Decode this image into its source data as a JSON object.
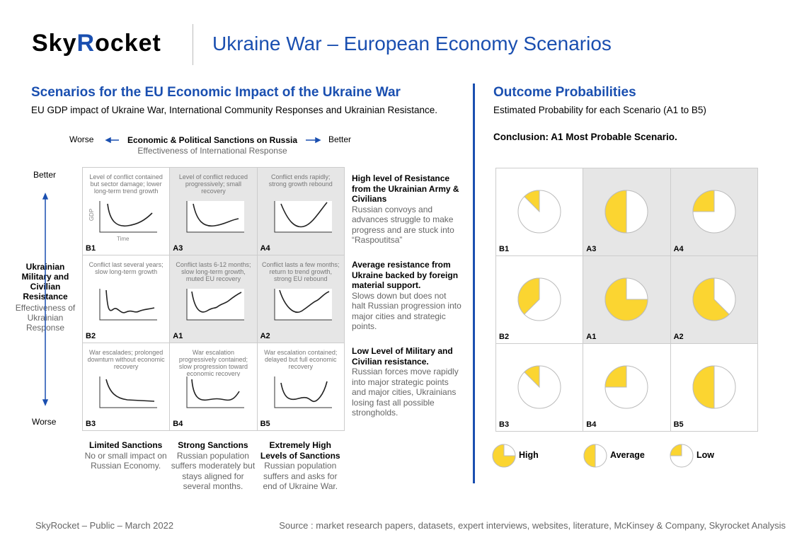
{
  "header": {
    "logo": [
      "Sky",
      "R",
      "ocket"
    ],
    "title": "Ukraine War – European Economy Scenarios"
  },
  "scenarios": {
    "title": "Scenarios for the EU Economic Impact of the Ukraine War",
    "subtitle": "EU GDP impact of Ukraine War, International Community Responses and Ukrainian Resistance.",
    "x_axis": {
      "worse": "Worse",
      "label": "Economic & Political Sanctions on Russia",
      "sublabel": "Effectiveness of International Response",
      "better": "Better"
    },
    "y_axis": {
      "better": "Better",
      "label": "Ukrainian Military and Civilian Resistance",
      "sublabel": "Effectiveness of Ukrainian Response",
      "worse": "Worse"
    },
    "chart_labels": {
      "y": "GDP",
      "x": "Time"
    },
    "cells": [
      {
        "id": "B1",
        "text": "Level of conflict contained but sector damage; lower long-term trend growth"
      },
      {
        "id": "A3",
        "text": "Level of conflict reduced progressively; small recovery"
      },
      {
        "id": "A4",
        "text": "Conflict ends rapidly; strong growth rebound"
      },
      {
        "id": "B2",
        "text": "Conflict last several years; slow long-term growth"
      },
      {
        "id": "A1",
        "text": "Conflict lasts 6-12 months; slow long-term growth, muted EU recovery"
      },
      {
        "id": "A2",
        "text": "Conflict lasts a few months; return to trend growth, strong EU rebound"
      },
      {
        "id": "B3",
        "text": "War escalades; prolonged downturn without economic recovery"
      },
      {
        "id": "B4",
        "text": "War escalation progressively contained; slow progression toward economic recovery"
      },
      {
        "id": "B5",
        "text": "War escalation contained; delayed but full economic recovery"
      }
    ],
    "rows": [
      {
        "title": "High level of Resistance from the Ukrainian Army & Civilians",
        "text": "Russian convoys and advances struggle to make progress and are stuck into “Raspoutitsa”"
      },
      {
        "title": "Average resistance from Ukraine backed by foreign material support.",
        "text": "Slows down but does not halt Russian progression into major cities and strategic points."
      },
      {
        "title": "Low Level of Military and Civilian resistance.",
        "text": "Russian forces move rapidly into major strategic points and major cities, Ukrainians losing fast all possible strongholds."
      }
    ],
    "columns": [
      {
        "title": "Limited Sanctions",
        "text": "No or small impact on Russian Economy."
      },
      {
        "title": "Strong Sanctions",
        "text": "Russian population suffers moderately but stays aligned for several months."
      },
      {
        "title": "Extremely High Levels of Sanctions",
        "text": "Russian population suffers and asks for end of Ukraine War."
      }
    ]
  },
  "outcomes": {
    "title": "Outcome Probabilities",
    "subtitle": "Estimated Probability for each Scenario (A1 to B5)",
    "conclusion": "Conclusion: A1 Most Probable Scenario.",
    "cells": [
      {
        "id": "B1",
        "probability": 12.5
      },
      {
        "id": "A3",
        "probability": 50
      },
      {
        "id": "A4",
        "probability": 25
      },
      {
        "id": "B2",
        "probability": 37.5
      },
      {
        "id": "A1",
        "probability": 75
      },
      {
        "id": "A2",
        "probability": 62.5
      },
      {
        "id": "B3",
        "probability": 12.5
      },
      {
        "id": "B4",
        "probability": 25
      },
      {
        "id": "B5",
        "probability": 50
      }
    ],
    "legend": [
      {
        "label": "High",
        "probability": 75
      },
      {
        "label": "Average",
        "probability": 50
      },
      {
        "label": "Low",
        "probability": 25
      }
    ]
  },
  "footer": {
    "left": "SkyRocket – Public – March 2022",
    "right": "Source : market research papers, datasets, expert interviews, websites, literature, McKinsey & Company, Skyrocket Analysis"
  }
}
